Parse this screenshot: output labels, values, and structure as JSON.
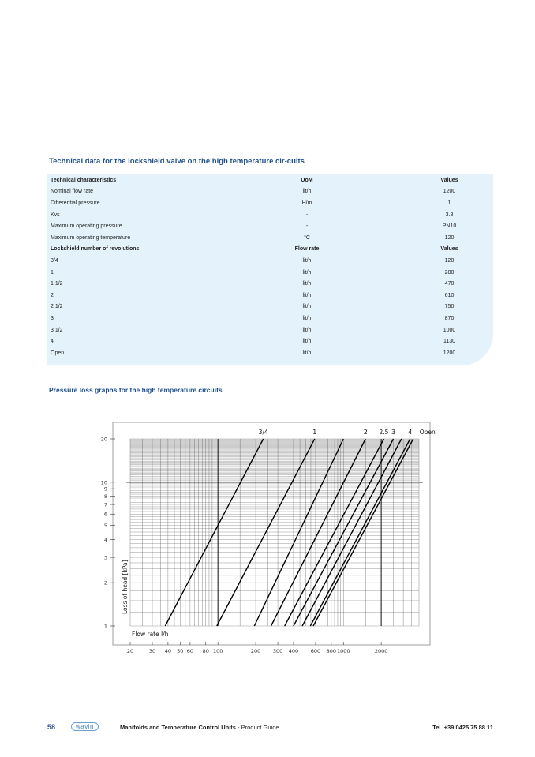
{
  "title": "Technical data for the lockshield valve on the high temperature cir-cuits",
  "table": {
    "header1": [
      "Technical characteristics",
      "UoM",
      "Values"
    ],
    "rows1": [
      [
        "Nominal flow rate",
        "lit/h",
        "1200"
      ],
      [
        "Differential pressure",
        "H/m",
        "1"
      ],
      [
        "Kvs",
        "-",
        "3.8"
      ],
      [
        "Maximum operating pressure",
        "-",
        "PN10"
      ],
      [
        "Maximum operating temperature",
        "°C",
        "120"
      ]
    ],
    "header2": [
      "Lockshield number of revolutions",
      "Flow rate",
      "Values"
    ],
    "rows2": [
      [
        "3/4",
        "lit/h",
        "120"
      ],
      [
        "1",
        "lit/h",
        "280"
      ],
      [
        "1 1/2",
        "lit/h",
        "470"
      ],
      [
        "2",
        "lit/h",
        "610"
      ],
      [
        "2 1/2",
        "lit/h",
        "750"
      ],
      [
        "3",
        "lit/h",
        "870"
      ],
      [
        "3 1/2",
        "lit/h",
        "1000"
      ],
      [
        "4",
        "lit/h",
        "1130"
      ],
      [
        "Open",
        "lit/h",
        "1200"
      ]
    ]
  },
  "subtitle": "Pressure loss graphs for the high temperature circuits",
  "chart_data": {
    "type": "line",
    "xscale": "log",
    "yscale": "log",
    "xlabel": "Flow rate l/h",
    "ylabel": "Loss of head [kPa]",
    "xlim": [
      20,
      4000
    ],
    "ylim": [
      1,
      20
    ],
    "xticks": [
      20,
      30,
      40,
      50,
      60,
      80,
      100,
      200,
      300,
      400,
      600,
      800,
      1000,
      2000
    ],
    "yticks": [
      1,
      2,
      3,
      4,
      5,
      6,
      7,
      8,
      9,
      10,
      20
    ],
    "series": [
      {
        "name": "3/4",
        "label": "3/4",
        "points": [
          [
            38,
            1
          ],
          [
            230,
            20
          ]
        ]
      },
      {
        "name": "1",
        "label": "1",
        "points": [
          [
            98,
            1
          ],
          [
            590,
            20
          ]
        ]
      },
      {
        "name": "1 1/2",
        "label": "",
        "points": [
          [
            195,
            1
          ],
          [
            1000,
            20
          ]
        ]
      },
      {
        "name": "2",
        "label": "2",
        "points": [
          [
            265,
            1
          ],
          [
            1500,
            20
          ]
        ]
      },
      {
        "name": "2.5",
        "label": "2.5",
        "points": [
          [
            340,
            1
          ],
          [
            2100,
            20
          ]
        ]
      },
      {
        "name": "3",
        "label": "3",
        "points": [
          [
            400,
            1
          ],
          [
            2500,
            20
          ]
        ]
      },
      {
        "name": "3.5",
        "label": "",
        "points": [
          [
            470,
            1
          ],
          [
            2900,
            20
          ]
        ]
      },
      {
        "name": "4",
        "label": "4",
        "points": [
          [
            545,
            1
          ],
          [
            3400,
            20
          ]
        ]
      },
      {
        "name": "Open",
        "label": "Open",
        "points": [
          [
            575,
            1
          ],
          [
            3600,
            20
          ]
        ]
      }
    ]
  },
  "footer": {
    "page": "58",
    "logo": "wavin",
    "title": "Manifolds and Temperature Control Units",
    "suffix": " - Product  Guide",
    "tel": "Tel. +39 0425 75 88 11"
  }
}
